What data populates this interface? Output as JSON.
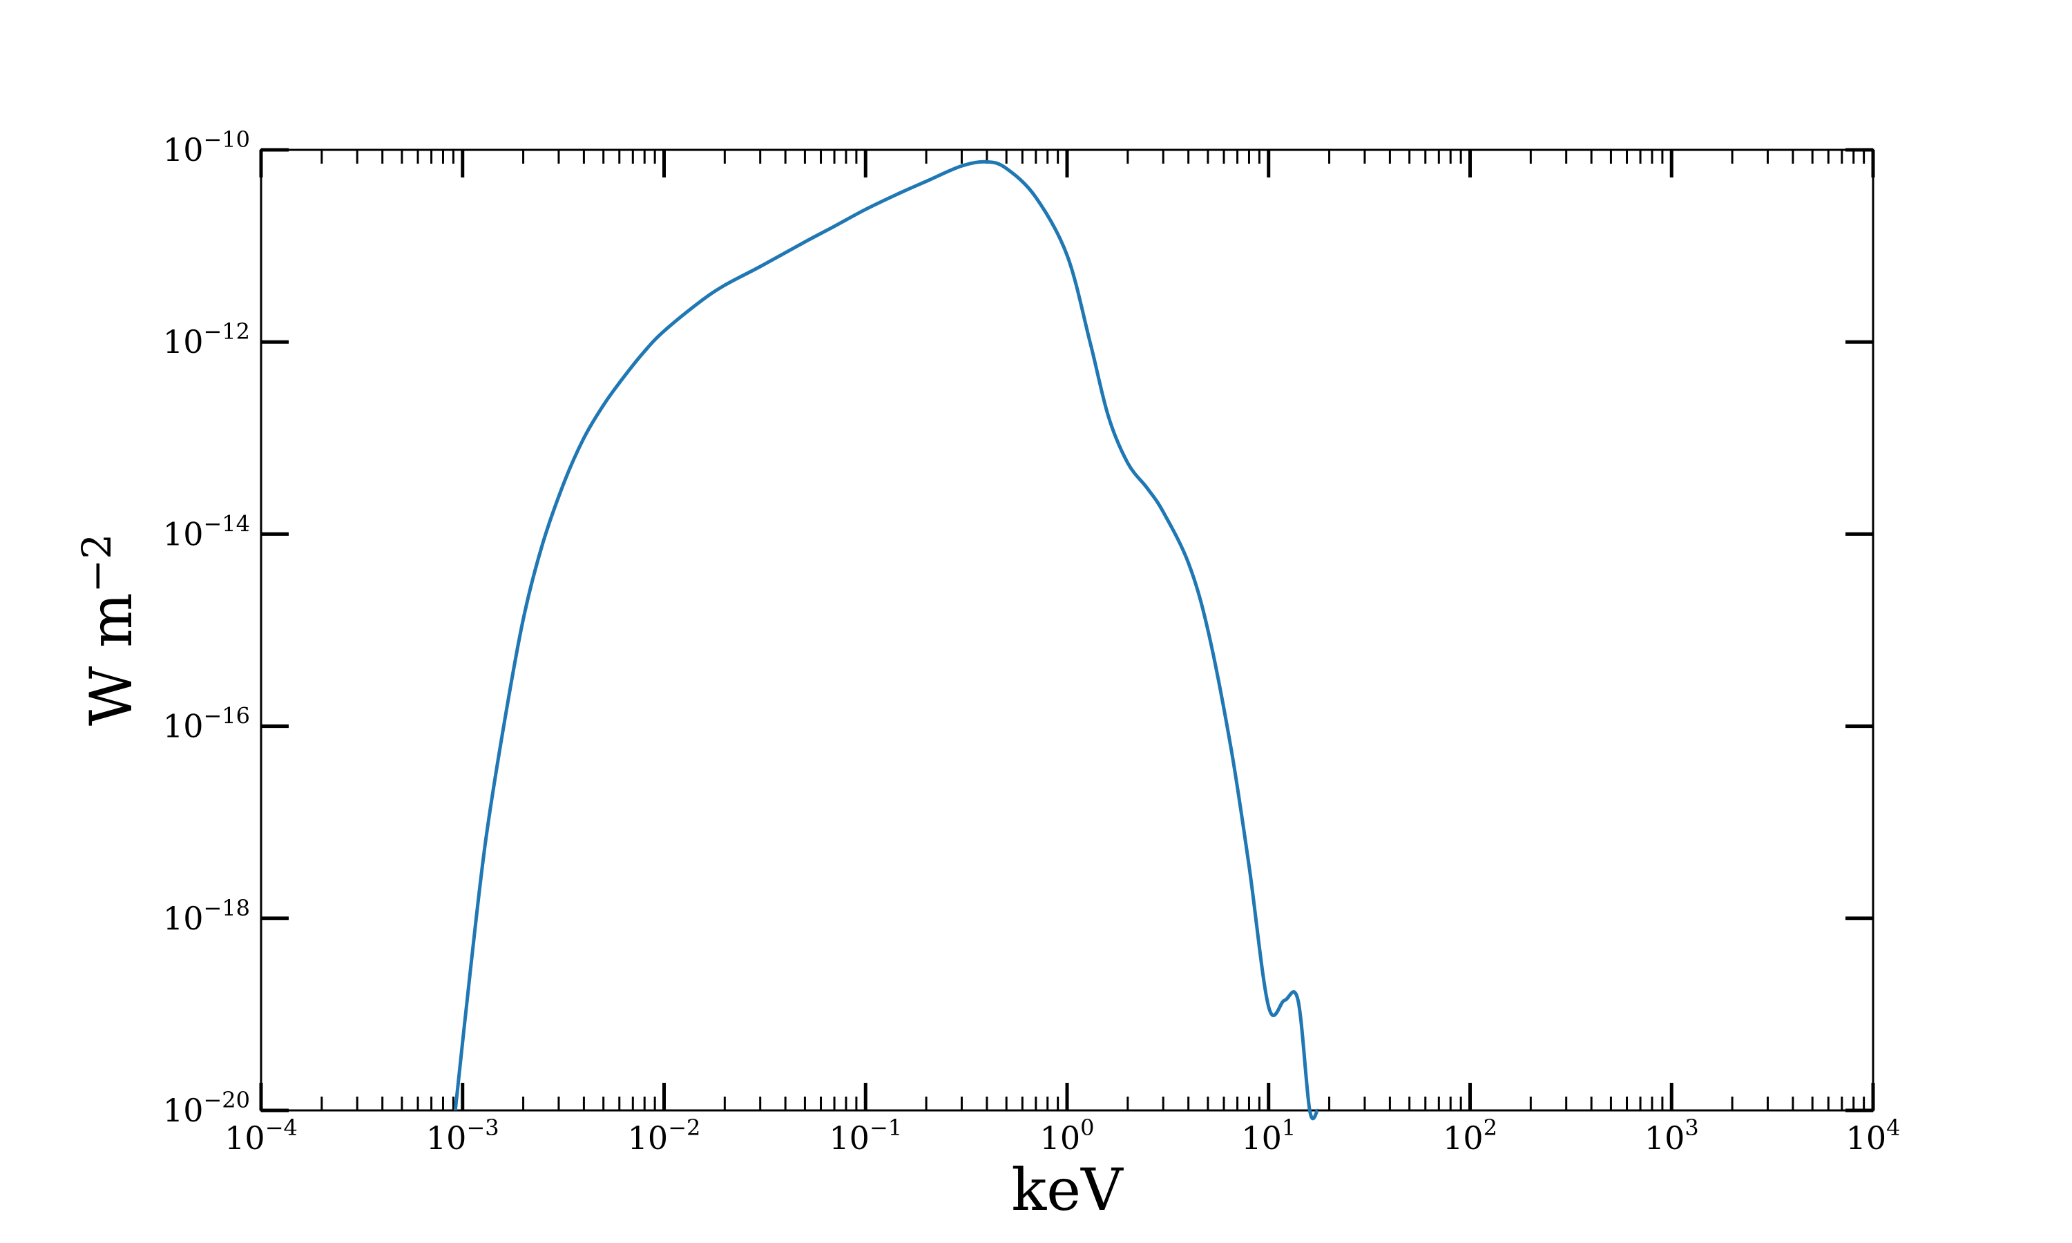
{
  "chart_data": {
    "type": "line",
    "title": "",
    "xlabel": "keV",
    "ylabel": "W m",
    "ylabel_superscript": "−2",
    "x_scale": "log",
    "y_scale": "log",
    "xlim": [
      0.0001,
      10000
    ],
    "ylim": [
      1e-20,
      1e-10
    ],
    "grid": false,
    "legend": "none",
    "line_color": "#1f77b4",
    "x_ticks": [
      {
        "value": 0.0001,
        "base": "10",
        "exp": "−4"
      },
      {
        "value": 0.001,
        "base": "10",
        "exp": "−3"
      },
      {
        "value": 0.01,
        "base": "10",
        "exp": "−2"
      },
      {
        "value": 0.1,
        "base": "10",
        "exp": "−1"
      },
      {
        "value": 1,
        "base": "10",
        "exp": "0"
      },
      {
        "value": 10,
        "base": "10",
        "exp": "1"
      },
      {
        "value": 100,
        "base": "10",
        "exp": "2"
      },
      {
        "value": 1000,
        "base": "10",
        "exp": "3"
      },
      {
        "value": 10000,
        "base": "10",
        "exp": "4"
      }
    ],
    "y_ticks": [
      {
        "value": 1e-20,
        "base": "10",
        "exp": "−20"
      },
      {
        "value": 1e-18,
        "base": "10",
        "exp": "−18"
      },
      {
        "value": 1e-16,
        "base": "10",
        "exp": "−16"
      },
      {
        "value": 1e-14,
        "base": "10",
        "exp": "−14"
      },
      {
        "value": 1e-12,
        "base": "10",
        "exp": "−12"
      },
      {
        "value": 1e-10,
        "base": "10",
        "exp": "−10"
      }
    ],
    "series": [
      {
        "x": [
          0.00092,
          0.0011,
          0.0013,
          0.0016,
          0.002,
          0.0025,
          0.0032,
          0.004,
          0.005,
          0.0063,
          0.008,
          0.01,
          0.015,
          0.02,
          0.03,
          0.05,
          0.07,
          0.1,
          0.15,
          0.2,
          0.3,
          0.4,
          0.5,
          0.7,
          1.0,
          1.3,
          1.6,
          2.0,
          2.5,
          3.0,
          4.0,
          5.0,
          6.5,
          8.0,
          10.0,
          12.0,
          14.0,
          16.0,
          17.5
        ],
        "y": [
          1e-20,
          3.2e-19,
          6.3e-18,
          1e-16,
          1.3e-15,
          8e-15,
          3.5e-14,
          1e-13,
          2.2e-13,
          4.3e-13,
          8e-13,
          1.3e-12,
          2.6e-12,
          3.9e-12,
          6.1e-12,
          1.1e-11,
          1.6e-11,
          2.4e-11,
          3.6e-11,
          4.7e-11,
          6.8e-11,
          7.5e-11,
          6.4e-11,
          3.2e-11,
          8e-12,
          1e-12,
          1.7e-13,
          5.5e-14,
          3e-14,
          1.7e-14,
          5e-15,
          1e-15,
          6e-17,
          3.5e-18,
          1.2e-19,
          1.4e-19,
          1.4e-19,
          1e-20,
          1e-20
        ]
      }
    ]
  }
}
